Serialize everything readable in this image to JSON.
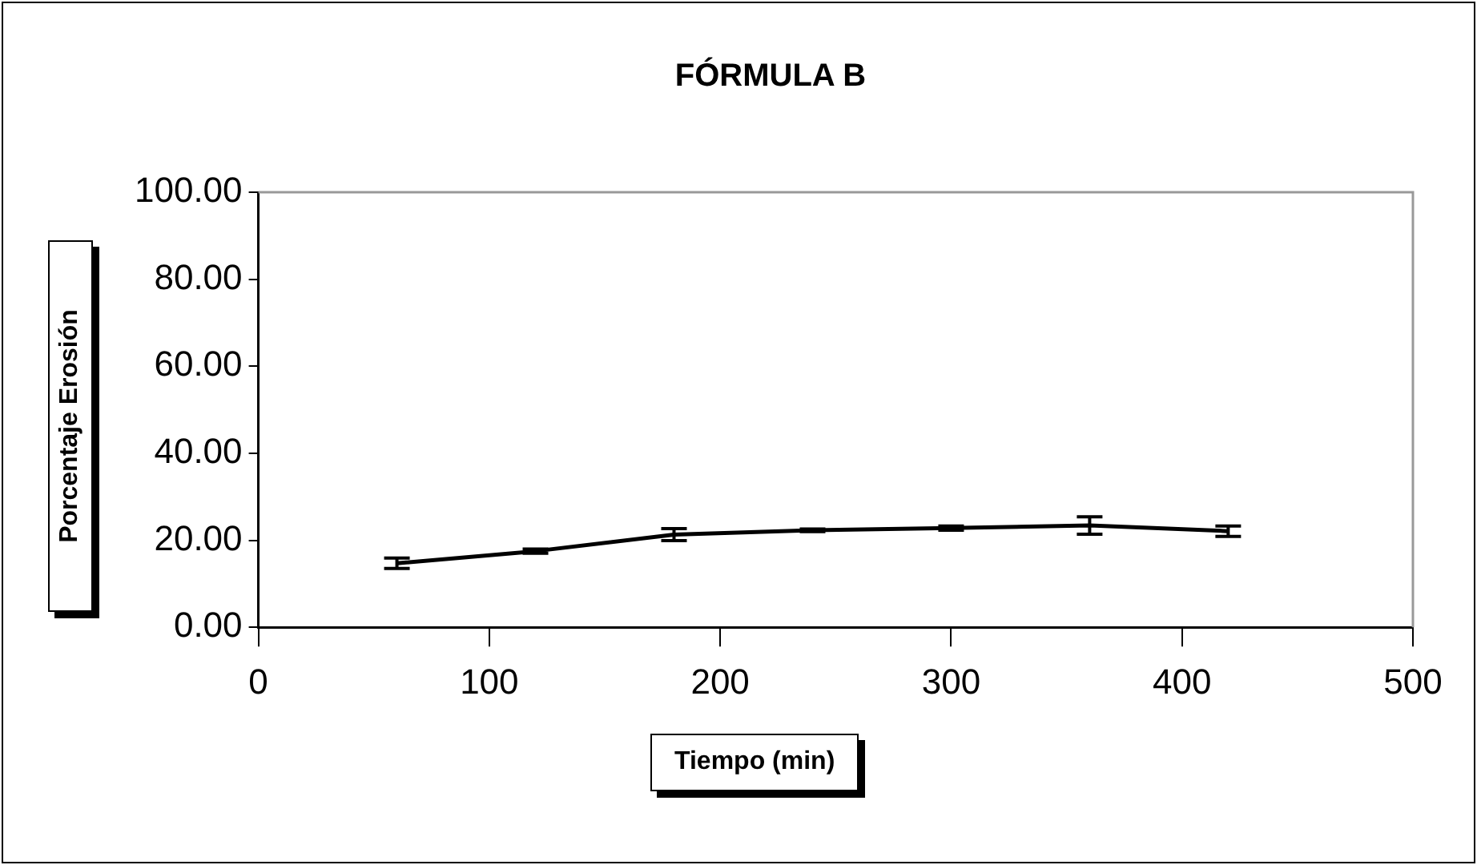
{
  "chart_data": {
    "type": "line",
    "title": "FÓRMULA B",
    "xlabel": "Tiempo (min)",
    "ylabel": "Porcentaje Erosión",
    "x": [
      60,
      120,
      180,
      240,
      300,
      360,
      420
    ],
    "series": [
      {
        "color": "#000000",
        "values": [
          14.7,
          17.5,
          21.3,
          22.3,
          22.8,
          23.4,
          22.1
        ],
        "errors": [
          1.2,
          0.5,
          1.4,
          0.3,
          0.5,
          2.0,
          1.2
        ]
      }
    ],
    "xlim": [
      0,
      500
    ],
    "xticks": [
      0,
      100,
      200,
      300,
      400,
      500
    ],
    "ylim": [
      0,
      100
    ],
    "yticks": [
      {
        "value": 0,
        "label": "0.00"
      },
      {
        "value": 20,
        "label": "20.00"
      },
      {
        "value": 40,
        "label": "40.00"
      },
      {
        "value": 60,
        "label": "60.00"
      },
      {
        "value": 80,
        "label": "80.00"
      },
      {
        "value": 100,
        "label": "100.00"
      }
    ],
    "grid": false,
    "legend": false,
    "marker": "none",
    "line_style": "solid"
  }
}
